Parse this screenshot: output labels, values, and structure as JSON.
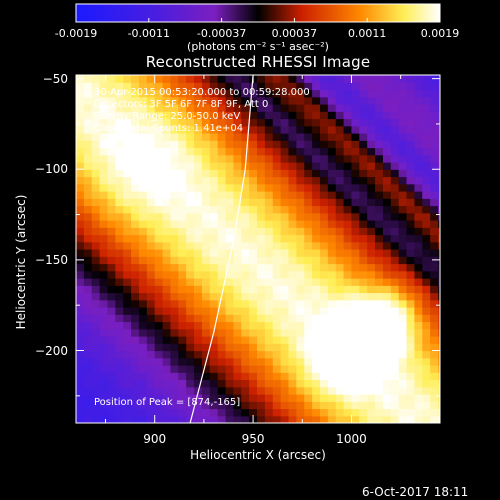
{
  "chart_data": {
    "type": "heatmap",
    "title": "Reconstructed RHESSI Image",
    "xlabel": "Heliocentric X (arcsec)",
    "ylabel": "Heliocentric Y (arcsec)",
    "xlim": [
      860,
      1045
    ],
    "ylim": [
      -240,
      -48
    ],
    "x_ticks": [
      900,
      950,
      1000
    ],
    "y_ticks": [
      -50,
      -100,
      -150,
      -200
    ],
    "colorbar": {
      "ticks": [
        "-0.0019",
        "-0.0011",
        "-0.00037",
        "0.00037",
        "0.0011",
        "0.0019"
      ],
      "range": [
        -0.0019,
        0.0019
      ],
      "units": "(photons cm⁻² s⁻¹ asec⁻²)",
      "colormap": [
        "#1a1aff",
        "#7b1fc0",
        "#000000",
        "#cc2000",
        "#ff8800",
        "#ffffff"
      ]
    },
    "annotations": [
      "30-Apr-2015 00:53:20.000 to 00:59:28.000",
      "Detectors: 3F 5F 6F 7F 8F 9F, Att 0",
      "Energy Range: 25.0-50.0 keV",
      "Clean    Total Counts: 1.41e+04"
    ],
    "peak_label": "Position of Peak = [874,-165]",
    "peak": {
      "x": 874,
      "y": -165
    },
    "limb": [
      [
        918,
        -240
      ],
      [
        930,
        -190
      ],
      [
        940,
        -140
      ],
      [
        946,
        -100
      ],
      [
        950,
        -48
      ]
    ]
  },
  "footer_date": "6-Oct-2017 18:11"
}
